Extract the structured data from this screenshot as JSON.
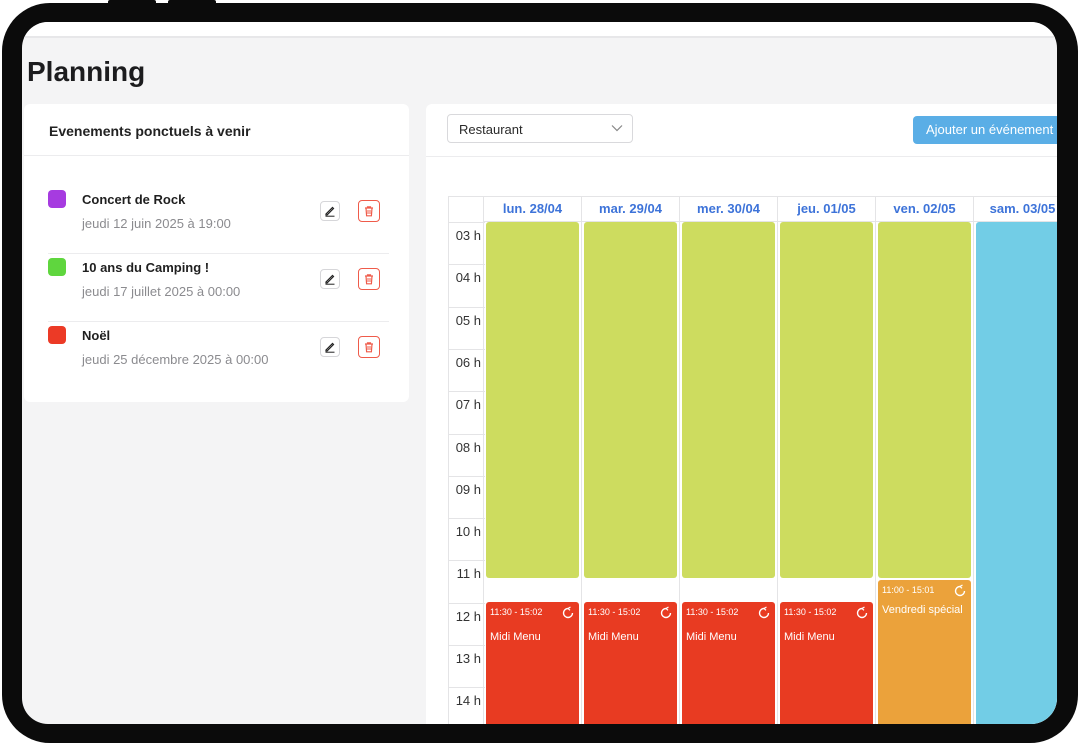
{
  "page": {
    "title": "Planning"
  },
  "events_card": {
    "title": "Evenements ponctuels à venir",
    "items": [
      {
        "name": "Concert de Rock",
        "date": "jeudi 12 juin 2025 à 19:00",
        "color": "#a63be0"
      },
      {
        "name": "10 ans du Camping !",
        "date": "jeudi 17 juillet 2025 à 00:00",
        "color": "#5fd63e"
      },
      {
        "name": "Noël",
        "date": "jeudi 25 décembre 2025 à 00:00",
        "color": "#ec3a26"
      }
    ]
  },
  "calendar": {
    "select": {
      "value": "Restaurant"
    },
    "add_button_label": "Ajouter un événement",
    "hours": [
      "03 h",
      "04 h",
      "05 h",
      "06 h",
      "07 h",
      "08 h",
      "09 h",
      "10 h",
      "11 h",
      "12 h",
      "13 h",
      "14 h"
    ],
    "days": [
      {
        "label": "lun. 28/04",
        "event": {
          "time": "11:30 - 15:02",
          "name": "Midi Menu"
        }
      },
      {
        "label": "mar. 29/04",
        "event": {
          "time": "11:30 - 15:02",
          "name": "Midi Menu"
        }
      },
      {
        "label": "mer. 30/04",
        "event": {
          "time": "11:30 - 15:02",
          "name": "Midi Menu"
        }
      },
      {
        "label": "jeu. 01/05",
        "event": {
          "time": "11:30 - 15:02",
          "name": "Midi Menu"
        }
      },
      {
        "label": "ven. 02/05",
        "event": {
          "time": "11:00 - 15:01",
          "name": "Vendredi spécial"
        }
      },
      {
        "label": "sam. 03/05"
      }
    ],
    "colors": {
      "closed": "#cddc5f",
      "midi": "#e83b22",
      "special": "#eba23b",
      "saturday": "#72cde6",
      "header_text": "#3d73d9"
    }
  }
}
